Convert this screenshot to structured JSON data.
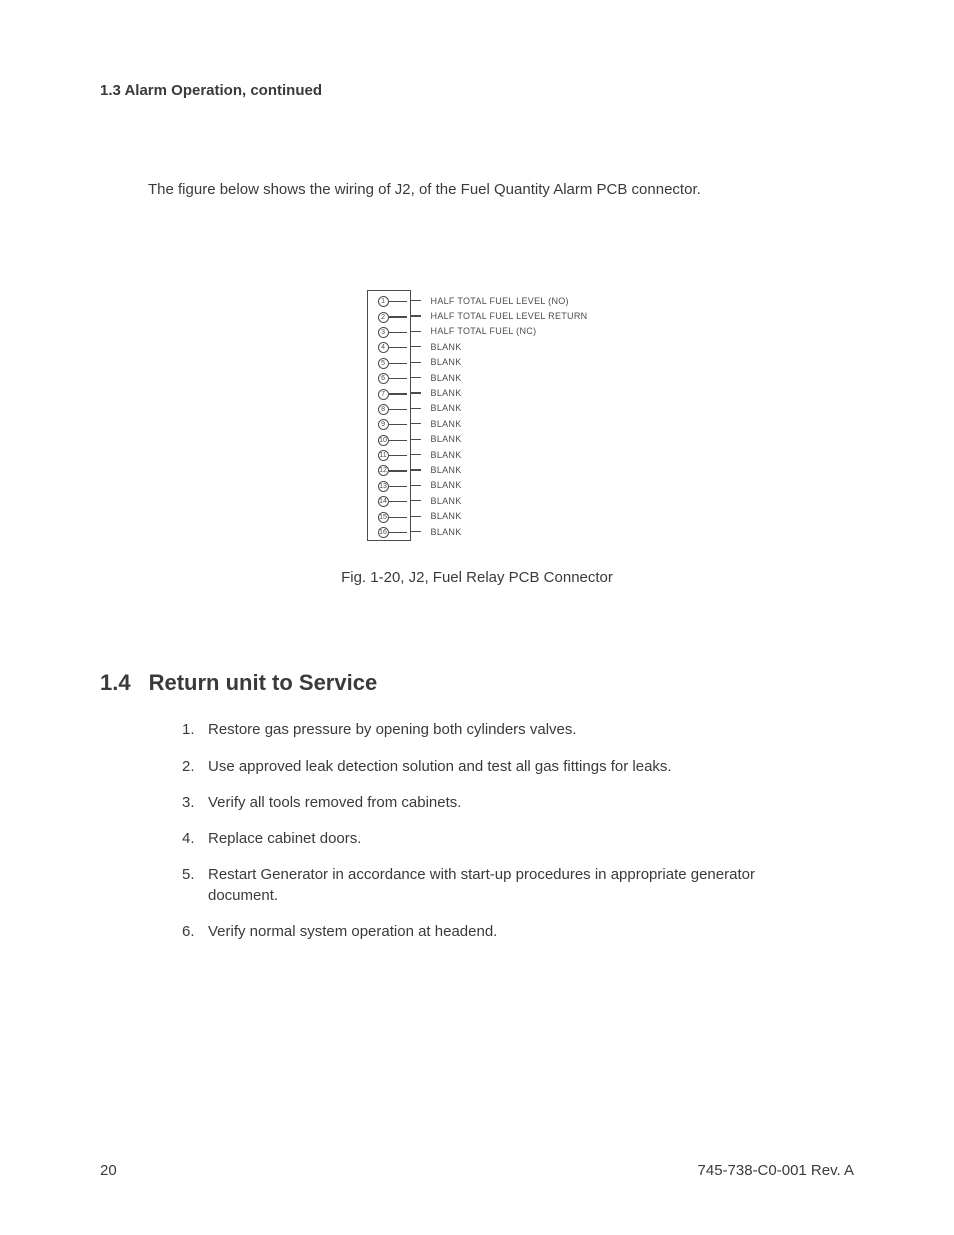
{
  "section_heading": "1.3 Alarm Operation, continued",
  "intro_text": "The figure below shows the wiring of J2, of the Fuel Quantity Alarm PCB connector.",
  "connector": {
    "pins": [
      {
        "n": "1",
        "label": "HALF TOTAL FUEL LEVEL (NO)"
      },
      {
        "n": "2",
        "label": "HALF TOTAL FUEL LEVEL RETURN"
      },
      {
        "n": "3",
        "label": "HALF TOTAL FUEL (NC)"
      },
      {
        "n": "4",
        "label": "BLANK"
      },
      {
        "n": "5",
        "label": "BLANK"
      },
      {
        "n": "6",
        "label": "BLANK"
      },
      {
        "n": "7",
        "label": "BLANK"
      },
      {
        "n": "8",
        "label": "BLANK"
      },
      {
        "n": "9",
        "label": "BLANK"
      },
      {
        "n": "10",
        "label": "BLANK"
      },
      {
        "n": "11",
        "label": "BLANK"
      },
      {
        "n": "12",
        "label": "BLANK"
      },
      {
        "n": "13",
        "label": "BLANK"
      },
      {
        "n": "14",
        "label": "BLANK"
      },
      {
        "n": "15",
        "label": "BLANK"
      },
      {
        "n": "16",
        "label": "BLANK"
      }
    ]
  },
  "figure_caption": "Fig. 1-20, J2, Fuel Relay PCB Connector",
  "section2": {
    "number": "1.4",
    "title": "Return unit to Service",
    "steps": [
      "Restore gas pressure by opening both cylinders valves.",
      "Use approved leak detection solution and test all gas fittings for leaks.",
      "Verify all tools removed from cabinets.",
      "Replace cabinet doors.",
      "Restart Generator in accordance with start-up procedures in appropriate generator document.",
      "Verify normal system operation at headend."
    ]
  },
  "footer": {
    "page_number": "20",
    "doc_id": "745-738-C0-001 Rev. A"
  },
  "colors": {
    "text": "#3a3a3a",
    "diagram_stroke": "#4b4b4b",
    "background": "#ffffff"
  }
}
